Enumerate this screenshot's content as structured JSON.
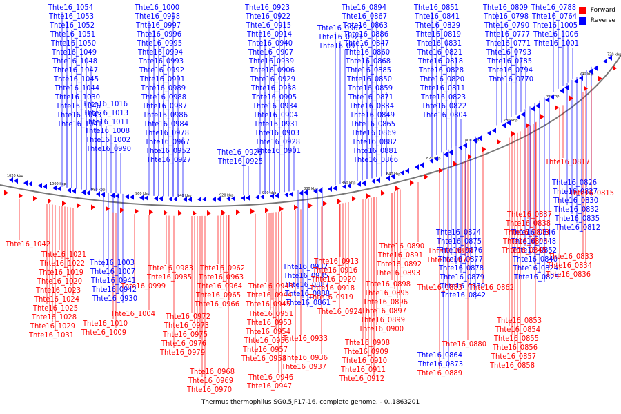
{
  "title": "Thermus thermophilus SG0.5JP17-16, complete genome. - 0..1863201",
  "legend": [
    {
      "label": "Forward",
      "color": "#ff0000"
    },
    {
      "label": "Reverse",
      "color": "#0000ff"
    }
  ],
  "colors": {
    "forward": "#ff0000",
    "reverse": "#0000ff",
    "backbone": "#777777"
  },
  "scale_labels": [
    "1020 kbp",
    "1000 kbp",
    "980 kbp",
    "960 kbp",
    "940 kbp",
    "920 kbp",
    "900 kbp",
    "880 kbp",
    "860 kbp",
    "840 kbp",
    "820 kbp",
    "800 kbp",
    "780 kbp",
    "760 kbp",
    "740 kbp",
    "720 kbp"
  ],
  "reverse_genes": [
    "Thte16_1054",
    "Thte16_1053",
    "Thte16_1052",
    "Thte16_1051",
    "Thte16_1050",
    "Thte16_1049",
    "Thte16_1048",
    "Thte16_1047",
    "Thte16_1045",
    "Thte16_1044",
    "Thte16_1030",
    "Thte16_1046",
    "Thte16_1043",
    "Thte16_1041",
    "Thte16_1016",
    "Thte16_1013",
    "Thte16_1011",
    "Thte16_1008",
    "Thte16_1002",
    "Thte16_0990",
    "Thte16_1000",
    "Thte16_0998",
    "Thte16_0997",
    "Thte16_0996",
    "Thte16_0995",
    "Thte16_0994",
    "Thte16_0993",
    "Thte16_0992",
    "Thte16_0991",
    "Thte16_0989",
    "Thte16_0988",
    "Thte16_0987",
    "Thte16_0986",
    "Thte16_0984",
    "Thte16_0978",
    "Thte16_0967",
    "Thte16_0952",
    "Thte16_0927",
    "Thte16_0926",
    "Thte16_0925",
    "Thte16_0923",
    "Thte16_0922",
    "Thte16_0915",
    "Thte16_0914",
    "Thte16_0940",
    "Thte16_0907",
    "Thte16_0939",
    "Thte16_0906",
    "Thte16_0929",
    "Thte16_0938",
    "Thte16_0905",
    "Thte16_0934",
    "Thte16_0904",
    "Thte16_0931",
    "Thte16_0903",
    "Thte16_0928",
    "Thte16_0901",
    "Thte16_0902",
    "Thte16_0921",
    "Thte16_0917",
    "Thte16_0894",
    "Thte16_0867",
    "Thte16_0863",
    "Thte16_0886",
    "Thte16_0847",
    "Thte16_0860",
    "Thte16_0868",
    "Thte16_0885",
    "Thte16_0850",
    "Thte16_0859",
    "Thte16_0871",
    "Thte16_0884",
    "Thte16_0849",
    "Thte16_0865",
    "Thte16_0869",
    "Thte16_0882",
    "Thte16_0881",
    "Thte16_0866",
    "Thte16_0851",
    "Thte16_0841",
    "Thte16_0829",
    "Thte16_0819",
    "Thte16_0831",
    "Thte16_0821",
    "Thte16_0818",
    "Thte16_0828",
    "Thte16_0820",
    "Thte16_0811",
    "Thte16_0823",
    "Thte16_0822",
    "Thte16_0804",
    "Thte16_0809",
    "Thte16_0798",
    "Thte16_0790",
    "Thte16_0777",
    "Thte16_0771",
    "Thte16_0793",
    "Thte16_0785",
    "Thte16_0794",
    "Thte16_0770",
    "Thte16_0788",
    "Thte16_0764",
    "Thte16_1005",
    "Thte16_1006",
    "Thte16_1001",
    "Thte16_1003",
    "Thte16_1007",
    "Thte16_0941",
    "Thte16_0942",
    "Thte16_0930",
    "Thte16_0932",
    "Thte16_0935",
    "Thte16_0887",
    "Thte16_0888",
    "Thte16_0861",
    "Thte16_0864",
    "Thte16_0873",
    "Thte16_0874",
    "Thte16_0875",
    "Thte16_0876",
    "Thte16_0877",
    "Thte16_0878",
    "Thte16_0879",
    "Thte16_0839",
    "Thte16_0842",
    "Thte16_0846",
    "Thte16_0848",
    "Thte16_0852",
    "Thte16_0840",
    "Thte16_0824",
    "Thte16_0825",
    "Thte16_0826",
    "Thte16_0827",
    "Thte16_0830",
    "Thte16_0832",
    "Thte16_0835",
    "Thte16_0812"
  ],
  "forward_genes": [
    "Thte16_1042",
    "Thte16_1021",
    "Thte16_1022",
    "Thte16_1019",
    "Thte16_1020",
    "Thte16_1023",
    "Thte16_1024",
    "Thte16_1025",
    "Thte16_1028",
    "Thte16_1029",
    "Thte16_1031",
    "Thte16_1010",
    "Thte16_1009",
    "Thte16_1004",
    "Thte16_0999",
    "Thte16_0983",
    "Thte16_0985",
    "Thte16_0972",
    "Thte16_0973",
    "Thte16_0975",
    "Thte16_0976",
    "Thte16_0979",
    "Thte16_0962",
    "Thte16_0963",
    "Thte16_0964",
    "Thte16_0965",
    "Thte16_0966",
    "Thte16_0968",
    "Thte16_0969",
    "Thte16_0970",
    "Thte16_0951",
    "Thte16_0953",
    "Thte16_0954",
    "Thte16_0956",
    "Thte16_0957",
    "Thte16_0958",
    "Thte16_0943",
    "Thte16_0944",
    "Thte16_0945",
    "Thte16_0946",
    "Thte16_0947",
    "Thte16_0936",
    "Thte16_0937",
    "Thte16_0933",
    "Thte16_0924",
    "Thte16_0913",
    "Thte16_0916",
    "Thte16_0920",
    "Thte16_0918",
    "Thte16_0919",
    "Thte16_0908",
    "Thte16_0909",
    "Thte16_0910",
    "Thte16_0911",
    "Thte16_0912",
    "Thte16_0890",
    "Thte16_0891",
    "Thte16_0892",
    "Thte16_0893",
    "Thte16_0898",
    "Thte16_0895",
    "Thte16_0896",
    "Thte16_0897",
    "Thte16_0899",
    "Thte16_0900",
    "Thte16_0889",
    "Thte16_0880",
    "Thte16_0883",
    "Thte16_0870",
    "Thte16_0872",
    "Thte16_0862",
    "Thte16_0837",
    "Thte16_0838",
    "Thte16_0843",
    "Thte16_0844",
    "Thte16_0845",
    "Thte16_0853",
    "Thte16_0854",
    "Thte16_0855",
    "Thte16_0856",
    "Thte16_0857",
    "Thte16_0858",
    "Thte16_0833",
    "Thte16_0834",
    "Thte16_0836",
    "Thte16_0817",
    "Thte16_0815"
  ]
}
